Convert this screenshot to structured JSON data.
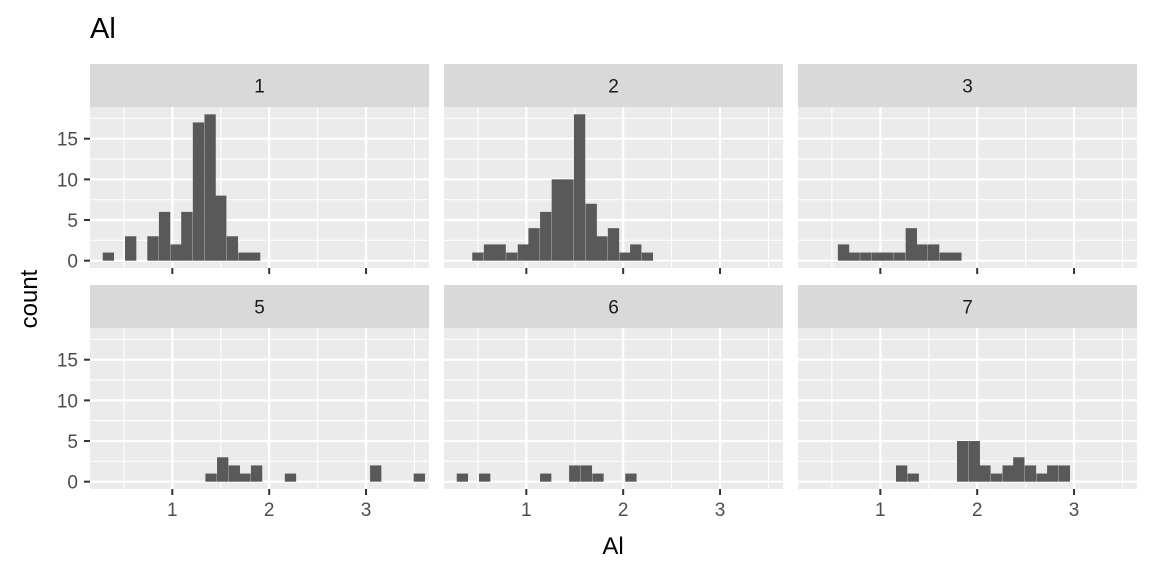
{
  "chart_data": {
    "type": "bar",
    "title": "Al",
    "xlabel": "Al",
    "ylabel": "count",
    "xlim": [
      0.15,
      3.65
    ],
    "ylim": [
      -0.9,
      18.9
    ],
    "x_ticks": [
      1,
      2,
      3
    ],
    "y_ticks": [
      0,
      5,
      10,
      15
    ],
    "bin_width": 0.1167,
    "grid": true,
    "facets": [
      {
        "label": "1",
        "bins": [
          {
            "x": 0.34,
            "count": 1
          },
          {
            "x": 0.57,
            "count": 3
          },
          {
            "x": 0.8,
            "count": 3
          },
          {
            "x": 0.92,
            "count": 6
          },
          {
            "x": 1.04,
            "count": 2
          },
          {
            "x": 1.15,
            "count": 6
          },
          {
            "x": 1.27,
            "count": 17
          },
          {
            "x": 1.39,
            "count": 18
          },
          {
            "x": 1.5,
            "count": 8
          },
          {
            "x": 1.62,
            "count": 3
          },
          {
            "x": 1.74,
            "count": 1
          },
          {
            "x": 1.85,
            "count": 1
          }
        ]
      },
      {
        "label": "2",
        "bins": [
          {
            "x": 0.5,
            "count": 1
          },
          {
            "x": 0.62,
            "count": 2
          },
          {
            "x": 0.73,
            "count": 2
          },
          {
            "x": 0.85,
            "count": 1
          },
          {
            "x": 0.97,
            "count": 2
          },
          {
            "x": 1.08,
            "count": 4
          },
          {
            "x": 1.2,
            "count": 6
          },
          {
            "x": 1.32,
            "count": 10
          },
          {
            "x": 1.43,
            "count": 10
          },
          {
            "x": 1.55,
            "count": 18
          },
          {
            "x": 1.67,
            "count": 7
          },
          {
            "x": 1.78,
            "count": 3
          },
          {
            "x": 1.9,
            "count": 4
          },
          {
            "x": 2.02,
            "count": 1
          },
          {
            "x": 2.13,
            "count": 2
          },
          {
            "x": 2.25,
            "count": 1
          }
        ]
      },
      {
        "label": "3",
        "bins": [
          {
            "x": 0.62,
            "count": 2
          },
          {
            "x": 0.73,
            "count": 1
          },
          {
            "x": 0.85,
            "count": 1
          },
          {
            "x": 0.97,
            "count": 1
          },
          {
            "x": 1.08,
            "count": 1
          },
          {
            "x": 1.2,
            "count": 1
          },
          {
            "x": 1.32,
            "count": 4
          },
          {
            "x": 1.43,
            "count": 2
          },
          {
            "x": 1.55,
            "count": 2
          },
          {
            "x": 1.67,
            "count": 1
          },
          {
            "x": 1.78,
            "count": 1
          }
        ]
      },
      {
        "label": "5",
        "bins": [
          {
            "x": 1.4,
            "count": 1
          },
          {
            "x": 1.52,
            "count": 3
          },
          {
            "x": 1.64,
            "count": 2
          },
          {
            "x": 1.75,
            "count": 1
          },
          {
            "x": 1.87,
            "count": 2
          },
          {
            "x": 2.22,
            "count": 1
          },
          {
            "x": 3.1,
            "count": 2
          },
          {
            "x": 3.55,
            "count": 1
          }
        ]
      },
      {
        "label": "6",
        "bins": [
          {
            "x": 0.34,
            "count": 1
          },
          {
            "x": 0.57,
            "count": 1
          },
          {
            "x": 1.2,
            "count": 1
          },
          {
            "x": 1.5,
            "count": 2
          },
          {
            "x": 1.62,
            "count": 2
          },
          {
            "x": 1.74,
            "count": 1
          },
          {
            "x": 2.08,
            "count": 1
          }
        ]
      },
      {
        "label": "7",
        "bins": [
          {
            "x": 1.22,
            "count": 2
          },
          {
            "x": 1.34,
            "count": 1
          },
          {
            "x": 1.85,
            "count": 5
          },
          {
            "x": 1.97,
            "count": 5
          },
          {
            "x": 2.08,
            "count": 2
          },
          {
            "x": 2.2,
            "count": 1
          },
          {
            "x": 2.32,
            "count": 2
          },
          {
            "x": 2.43,
            "count": 3
          },
          {
            "x": 2.55,
            "count": 2
          },
          {
            "x": 2.67,
            "count": 1
          },
          {
            "x": 2.78,
            "count": 2
          },
          {
            "x": 2.9,
            "count": 2
          }
        ]
      }
    ]
  }
}
